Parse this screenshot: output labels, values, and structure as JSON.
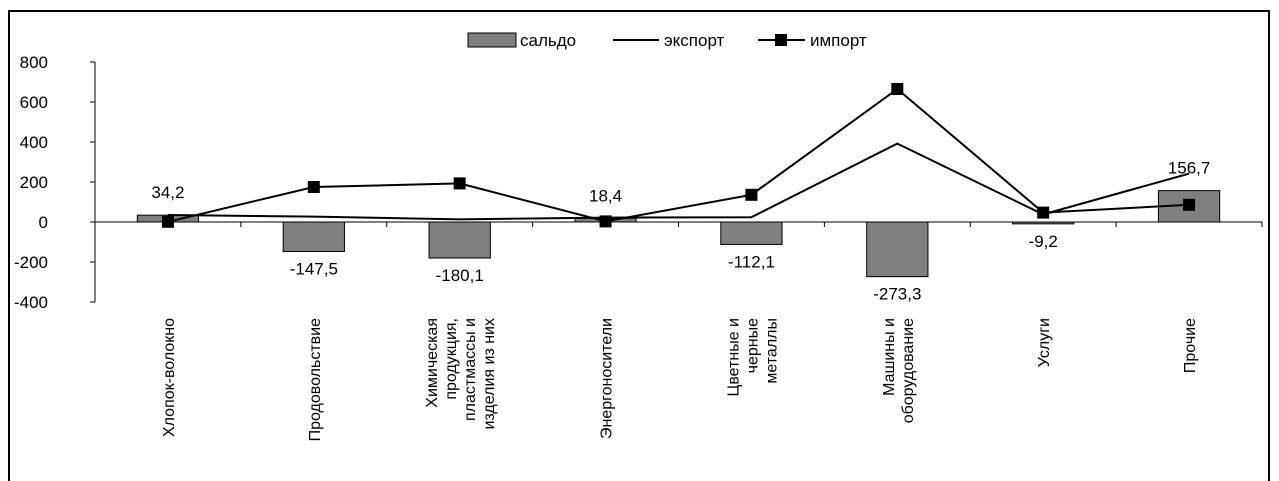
{
  "chart_data": {
    "type": "bar",
    "categories": [
      [
        "Хлопок-волокно"
      ],
      [
        "Продовольствие"
      ],
      [
        "Химическая",
        "продукция,",
        "пластмассы и",
        "изделия из них"
      ],
      [
        "Энергоносители"
      ],
      [
        "Цветные и",
        "черные",
        "металлы"
      ],
      [
        "Машины и",
        "оборудование"
      ],
      [
        "Услуги"
      ],
      [
        "Прочие"
      ]
    ],
    "series": [
      {
        "name": "сальдо",
        "kind": "bar",
        "values": [
          34.2,
          -147.5,
          -180.1,
          18.4,
          -112.1,
          -273.3,
          -9.2,
          156.7
        ]
      },
      {
        "name": "экспорт",
        "kind": "line",
        "values": [
          35,
          27,
          13,
          22,
          24,
          392,
          38,
          242
        ]
      },
      {
        "name": "импорт",
        "kind": "line-marker",
        "values": [
          1,
          175,
          193,
          3,
          136,
          665,
          47,
          86
        ]
      }
    ],
    "data_labels": [
      "34,2",
      "-147,5",
      "-180,1",
      "18,4",
      "-112,1",
      "-273,3",
      "-9,2",
      "156,7"
    ],
    "ylim": [
      -400,
      800
    ],
    "yticks": [
      -400,
      -200,
      0,
      200,
      400,
      600,
      800
    ],
    "legend_position": "top",
    "grid": false,
    "colors": {
      "bar": "#808080",
      "line": "#000000"
    }
  }
}
